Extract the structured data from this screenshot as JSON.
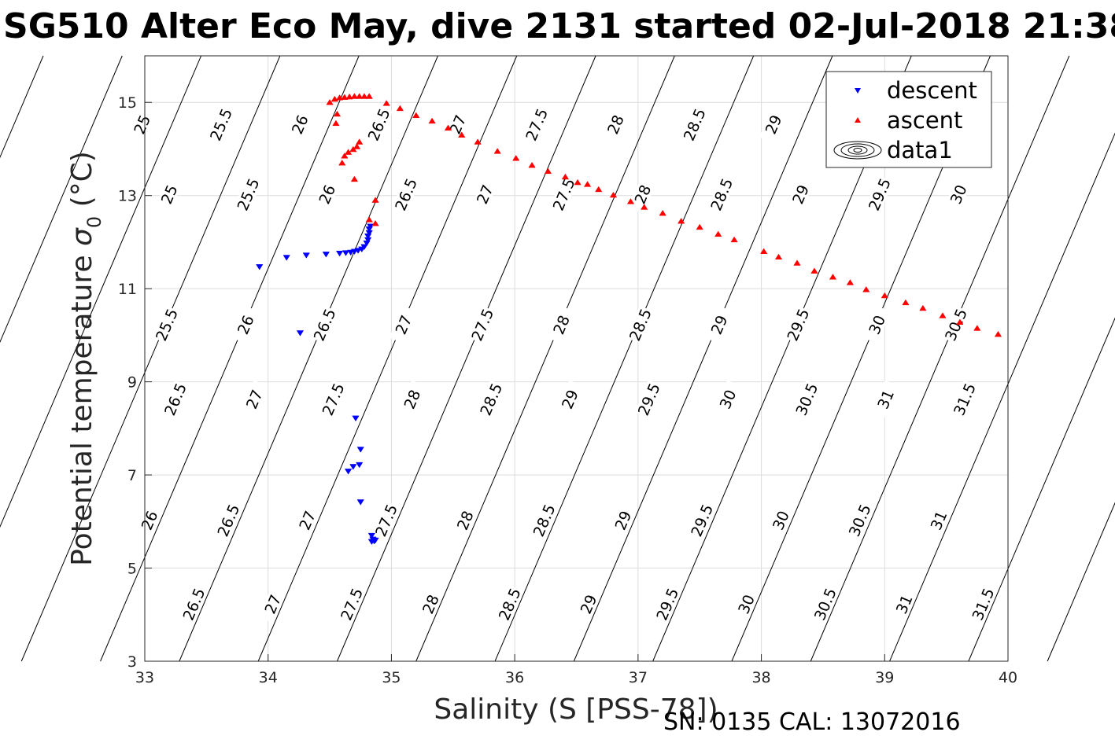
{
  "chart_data": {
    "type": "scatter",
    "title": "SG510 Alter Eco May, dive 2131 started 02-Jul-2018 21:38",
    "xlabel": "Salinity (S [PSS-78])",
    "ylabel": "Potential temperature σ0 (°C)",
    "xlim": [
      33,
      40
    ],
    "ylim": [
      3,
      16
    ],
    "xticks": [
      33,
      34,
      35,
      36,
      37,
      38,
      39,
      40
    ],
    "yticks": [
      3,
      5,
      7,
      9,
      11,
      13,
      15
    ],
    "grid": true,
    "legend_position": "top-right",
    "legend": [
      {
        "label": "descent",
        "marker": "triangle-down",
        "color": "#0000ff"
      },
      {
        "label": "ascent",
        "marker": "triangle-up",
        "color": "#ff0000"
      },
      {
        "label": "data1",
        "marker": "contour",
        "color": "#000000"
      }
    ],
    "contour_labels": [
      "25",
      "25.5",
      "26",
      "26.5",
      "27",
      "27.5",
      "28",
      "28.5",
      "29",
      "29.5",
      "30",
      "30.5",
      "31",
      "31.5"
    ],
    "series": [
      {
        "name": "descent",
        "color": "#0000ff",
        "marker": "triangle-down",
        "points": [
          [
            33.93,
            11.47
          ],
          [
            34.15,
            11.67
          ],
          [
            34.31,
            11.72
          ],
          [
            34.47,
            11.74
          ],
          [
            34.58,
            11.76
          ],
          [
            34.63,
            11.77
          ],
          [
            34.67,
            11.78
          ],
          [
            34.7,
            11.8
          ],
          [
            34.73,
            11.82
          ],
          [
            34.76,
            11.85
          ],
          [
            34.78,
            11.9
          ],
          [
            34.8,
            11.98
          ],
          [
            34.81,
            12.05
          ],
          [
            34.81,
            12.13
          ],
          [
            34.82,
            12.2
          ],
          [
            34.82,
            12.28
          ],
          [
            34.83,
            12.34
          ],
          [
            34.26,
            10.05
          ],
          [
            34.71,
            8.22
          ],
          [
            34.75,
            7.55
          ],
          [
            34.74,
            7.22
          ],
          [
            34.69,
            7.18
          ],
          [
            34.65,
            7.08
          ],
          [
            34.75,
            6.42
          ],
          [
            34.84,
            5.7
          ],
          [
            34.85,
            5.62
          ],
          [
            34.86,
            5.58
          ],
          [
            34.87,
            5.6
          ],
          [
            34.84,
            5.57
          ]
        ]
      },
      {
        "name": "ascent",
        "color": "#ff0000",
        "marker": "triangle-up",
        "points": [
          [
            34.5,
            15.0
          ],
          [
            34.54,
            15.07
          ],
          [
            34.58,
            15.1
          ],
          [
            34.62,
            15.11
          ],
          [
            34.66,
            15.12
          ],
          [
            34.7,
            15.13
          ],
          [
            34.74,
            15.13
          ],
          [
            34.78,
            15.13
          ],
          [
            34.82,
            15.13
          ],
          [
            34.55,
            14.55
          ],
          [
            34.56,
            14.75
          ],
          [
            34.6,
            13.7
          ],
          [
            34.62,
            13.85
          ],
          [
            34.65,
            13.93
          ],
          [
            34.69,
            13.99
          ],
          [
            34.72,
            14.05
          ],
          [
            34.74,
            14.15
          ],
          [
            34.7,
            13.35
          ],
          [
            34.87,
            12.9
          ],
          [
            34.82,
            12.48
          ],
          [
            34.87,
            12.4
          ],
          [
            34.96,
            14.98
          ],
          [
            35.07,
            14.87
          ],
          [
            35.2,
            14.72
          ],
          [
            35.33,
            14.6
          ],
          [
            35.46,
            14.45
          ],
          [
            35.57,
            14.3
          ],
          [
            35.7,
            14.15
          ],
          [
            35.86,
            13.95
          ],
          [
            36.01,
            13.8
          ],
          [
            36.14,
            13.65
          ],
          [
            36.27,
            13.52
          ],
          [
            36.41,
            13.4
          ],
          [
            36.51,
            13.28
          ],
          [
            36.59,
            13.24
          ],
          [
            36.68,
            13.13
          ],
          [
            36.8,
            13.01
          ],
          [
            36.94,
            12.87
          ],
          [
            37.05,
            12.75
          ],
          [
            37.2,
            12.62
          ],
          [
            37.35,
            12.45
          ],
          [
            37.5,
            12.32
          ],
          [
            37.65,
            12.17
          ],
          [
            37.78,
            12.05
          ],
          [
            38.02,
            11.8
          ],
          [
            38.14,
            11.68
          ],
          [
            38.29,
            11.55
          ],
          [
            38.43,
            11.38
          ],
          [
            38.58,
            11.25
          ],
          [
            38.72,
            11.13
          ],
          [
            38.85,
            10.98
          ],
          [
            39.0,
            10.85
          ],
          [
            39.17,
            10.7
          ],
          [
            39.31,
            10.58
          ],
          [
            39.47,
            10.42
          ],
          [
            39.61,
            10.28
          ],
          [
            39.75,
            10.15
          ],
          [
            39.92,
            10.02
          ]
        ]
      }
    ]
  },
  "footer": {
    "serial": "SN: 0135  CAL: 13072016"
  }
}
